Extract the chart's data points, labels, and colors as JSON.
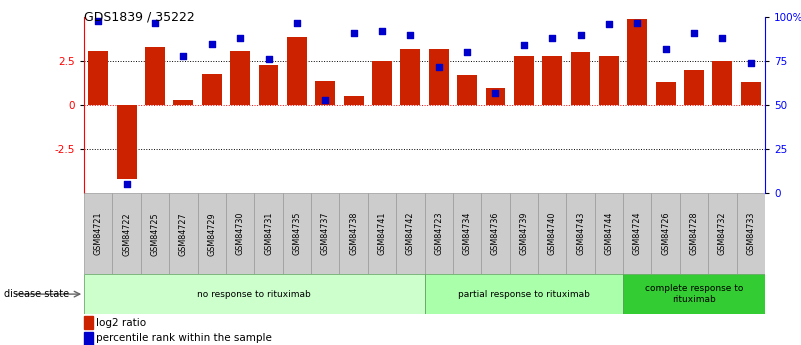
{
  "title": "GDS1839 / 35222",
  "samples": [
    "GSM84721",
    "GSM84722",
    "GSM84725",
    "GSM84727",
    "GSM84729",
    "GSM84730",
    "GSM84731",
    "GSM84735",
    "GSM84737",
    "GSM84738",
    "GSM84741",
    "GSM84742",
    "GSM84723",
    "GSM84734",
    "GSM84736",
    "GSM84739",
    "GSM84740",
    "GSM84743",
    "GSM84744",
    "GSM84724",
    "GSM84726",
    "GSM84728",
    "GSM84732",
    "GSM84733"
  ],
  "log2_ratio": [
    3.1,
    -4.2,
    3.3,
    0.3,
    1.8,
    3.1,
    2.3,
    3.9,
    1.4,
    0.5,
    2.5,
    3.2,
    3.2,
    1.7,
    1.0,
    2.8,
    2.8,
    3.0,
    2.8,
    4.9,
    1.3,
    2.0,
    2.5,
    1.3
  ],
  "percentile": [
    98,
    5,
    97,
    78,
    85,
    88,
    76,
    97,
    53,
    91,
    92,
    90,
    72,
    80,
    57,
    84,
    88,
    90,
    96,
    97,
    82,
    91,
    88,
    74
  ],
  "groups": [
    {
      "label": "no response to rituximab",
      "start": 0,
      "end": 12,
      "color": "#ccffcc"
    },
    {
      "label": "partial response to rituximab",
      "start": 12,
      "end": 19,
      "color": "#aaffaa"
    },
    {
      "label": "complete response to\nrituximab",
      "start": 19,
      "end": 24,
      "color": "#33cc33"
    }
  ],
  "bar_color": "#cc2200",
  "dot_color": "#0000cc",
  "ylim_left": [
    -5,
    5
  ],
  "ylim_right": [
    0,
    100
  ],
  "yticks_left": [
    -2.5,
    0,
    2.5
  ],
  "yticks_right": [
    0,
    25,
    50,
    75,
    100
  ],
  "hlines_dotted": [
    -2.5,
    2.5
  ],
  "hline_zero": 0,
  "disease_state_label": "disease state",
  "legend_bar_label": "log2 ratio",
  "legend_dot_label": "percentile rank within the sample",
  "label_box_color": "#cccccc",
  "label_box_edge": "#999999"
}
